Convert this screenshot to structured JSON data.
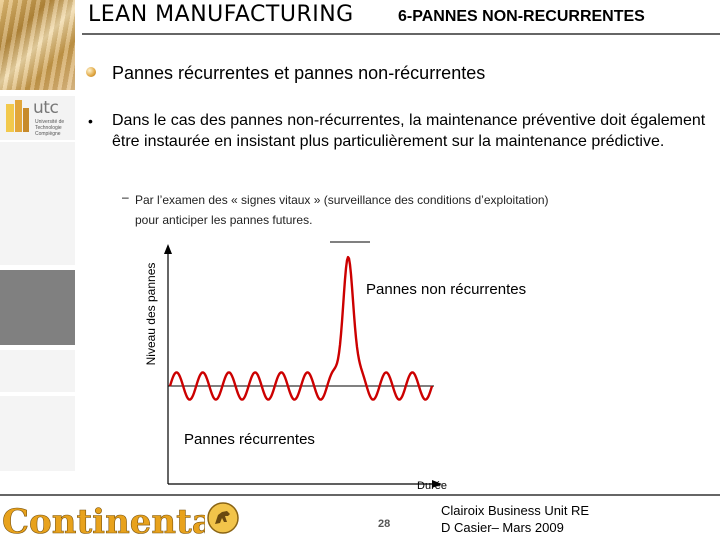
{
  "header": {
    "title_left": "LEAN MANUFACTURING",
    "title_right": "6-PANNES NON-RECURRENTES"
  },
  "sidebar": {
    "logo_word": "utc",
    "logo_sub": "Université de Technologie Compiègne"
  },
  "content": {
    "heading": "Pannes récurrentes et pannes non-récurrentes",
    "bullet": "•",
    "paragraph": "Dans le cas des pannes non-récurrentes, la maintenance préventive doit également être  instaurée en insistant plus particulièrement sur la maintenance prédictive.",
    "sub_dash": "–",
    "sub_text": "Par l’examen des « signes vitaux » (surveillance des conditions d’exploitation) pour anticiper les pannes futures."
  },
  "chart_data": {
    "type": "line",
    "ylabel": "Niveau des pannes",
    "xlabel": "Durée",
    "annotations": [
      "Pannes non récurrentes",
      "Pannes  récurrentes"
    ],
    "baseline_level": 0,
    "oscillation_amplitude": 0.08,
    "oscillation_cycles": 10,
    "spike_peak": 1.0,
    "series": [
      {
        "color": "#cc0000"
      }
    ]
  },
  "footer": {
    "company": "Continental",
    "page_number": "28",
    "line1": "Clairoix Business Unit RE",
    "line2": "D Casier– Mars 2009"
  },
  "colors": {
    "accent": "#cc0000",
    "rule": "#666666",
    "brand": "#e8a21c"
  }
}
